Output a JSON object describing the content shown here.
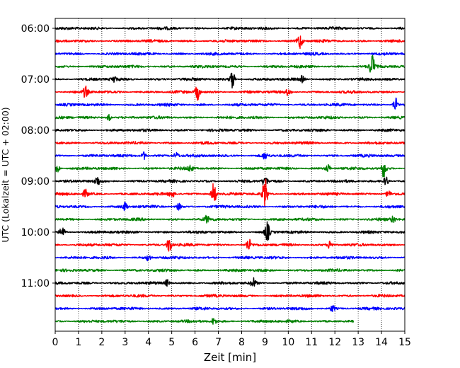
{
  "chart_data": {
    "type": "line",
    "title": "",
    "xlabel": "Zeit  [min]",
    "ylabel": "UTC (Lokalzeit = UTC + 02:00)",
    "xlim": [
      0,
      15
    ],
    "x_ticks": [
      0,
      1,
      2,
      3,
      4,
      5,
      6,
      7,
      8,
      9,
      10,
      11,
      12,
      13,
      14,
      15
    ],
    "x_tick_labels": [
      "0",
      "1",
      "2",
      "3",
      "4",
      "5",
      "6",
      "7",
      "8",
      "9",
      "10",
      "11",
      "12",
      "13",
      "14",
      "15"
    ],
    "y_ticks": [
      "06:00",
      "07:00",
      "08:00",
      "09:00",
      "10:00",
      "11:00"
    ],
    "row_minutes": 15,
    "grid": "vertical dotted",
    "color_cycle": [
      "#000000",
      "#ff0000",
      "#0000ff",
      "#008000"
    ],
    "traces": [
      {
        "start": "06:00",
        "color": "#000000",
        "end_min": 15,
        "events": []
      },
      {
        "start": "06:15",
        "color": "#ff0000",
        "end_min": 15,
        "events": [
          {
            "t": 10.5,
            "amp": 1.0
          }
        ]
      },
      {
        "start": "06:30",
        "color": "#0000ff",
        "end_min": 15,
        "events": []
      },
      {
        "start": "06:45",
        "color": "#008000",
        "end_min": 15,
        "events": [
          {
            "t": 13.6,
            "amp": 1.5
          }
        ]
      },
      {
        "start": "07:00",
        "color": "#000000",
        "end_min": 15,
        "events": [
          {
            "t": 2.5,
            "amp": 0.4
          },
          {
            "t": 7.6,
            "amp": 1.2
          },
          {
            "t": 10.6,
            "amp": 0.4
          }
        ]
      },
      {
        "start": "07:15",
        "color": "#ff0000",
        "end_min": 15,
        "events": [
          {
            "t": 1.3,
            "amp": 0.7
          },
          {
            "t": 6.1,
            "amp": 1.0
          },
          {
            "t": 10.0,
            "amp": 0.4
          }
        ]
      },
      {
        "start": "07:30",
        "color": "#0000ff",
        "end_min": 15,
        "events": [
          {
            "t": 14.6,
            "amp": 0.9
          }
        ]
      },
      {
        "start": "07:45",
        "color": "#008000",
        "end_min": 15,
        "events": [
          {
            "t": 2.3,
            "amp": 0.4
          }
        ]
      },
      {
        "start": "08:00",
        "color": "#000000",
        "end_min": 15,
        "events": []
      },
      {
        "start": "08:15",
        "color": "#ff0000",
        "end_min": 15,
        "events": []
      },
      {
        "start": "08:30",
        "color": "#0000ff",
        "end_min": 15,
        "events": [
          {
            "t": 3.8,
            "amp": 0.5
          },
          {
            "t": 5.2,
            "amp": 0.4
          },
          {
            "t": 9.0,
            "amp": 0.4
          }
        ]
      },
      {
        "start": "08:45",
        "color": "#008000",
        "end_min": 15,
        "events": [
          {
            "t": 0.1,
            "amp": 0.5
          },
          {
            "t": 5.8,
            "amp": 0.4
          },
          {
            "t": 11.7,
            "amp": 0.5
          },
          {
            "t": 14.1,
            "amp": 1.2
          }
        ]
      },
      {
        "start": "09:00",
        "color": "#000000",
        "end_min": 15,
        "events": [
          {
            "t": 1.8,
            "amp": 0.6
          },
          {
            "t": 9.0,
            "amp": 0.6
          },
          {
            "t": 14.2,
            "amp": 0.6
          }
        ]
      },
      {
        "start": "09:15",
        "color": "#ff0000",
        "end_min": 15,
        "events": [
          {
            "t": 1.3,
            "amp": 0.5
          },
          {
            "t": 5.0,
            "amp": 0.5
          },
          {
            "t": 6.8,
            "amp": 1.5
          },
          {
            "t": 9.0,
            "amp": 2.0
          },
          {
            "t": 14.3,
            "amp": 0.4
          }
        ]
      },
      {
        "start": "09:30",
        "color": "#0000ff",
        "end_min": 15,
        "events": [
          {
            "t": 3.0,
            "amp": 0.5
          },
          {
            "t": 5.3,
            "amp": 0.4
          }
        ]
      },
      {
        "start": "09:45",
        "color": "#008000",
        "end_min": 15,
        "events": [
          {
            "t": 6.5,
            "amp": 0.4
          },
          {
            "t": 14.5,
            "amp": 0.4
          }
        ]
      },
      {
        "start": "10:00",
        "color": "#000000",
        "end_min": 15,
        "events": [
          {
            "t": 0.3,
            "amp": 0.7
          },
          {
            "t": 9.1,
            "amp": 1.2
          }
        ]
      },
      {
        "start": "10:15",
        "color": "#ff0000",
        "end_min": 15,
        "events": [
          {
            "t": 4.9,
            "amp": 1.0
          },
          {
            "t": 8.3,
            "amp": 0.8
          },
          {
            "t": 11.8,
            "amp": 0.6
          }
        ]
      },
      {
        "start": "10:30",
        "color": "#0000ff",
        "end_min": 15,
        "events": [
          {
            "t": 4.0,
            "amp": 0.4
          }
        ]
      },
      {
        "start": "10:45",
        "color": "#008000",
        "end_min": 15,
        "events": []
      },
      {
        "start": "11:00",
        "color": "#000000",
        "end_min": 15,
        "events": [
          {
            "t": 4.8,
            "amp": 0.4
          },
          {
            "t": 8.5,
            "amp": 0.6
          }
        ]
      },
      {
        "start": "11:15",
        "color": "#ff0000",
        "end_min": 15,
        "events": []
      },
      {
        "start": "11:30",
        "color": "#0000ff",
        "end_min": 15,
        "events": [
          {
            "t": 11.9,
            "amp": 0.4
          }
        ]
      },
      {
        "start": "11:45",
        "color": "#008000",
        "end_min": 12.8,
        "events": [
          {
            "t": 6.8,
            "amp": 0.4
          }
        ]
      }
    ]
  }
}
